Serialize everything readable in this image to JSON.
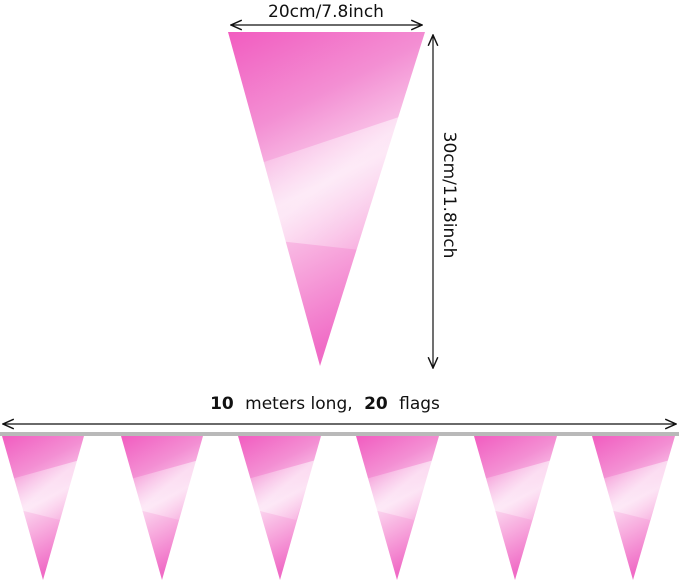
{
  "width_label": "20cm/7.8inch",
  "height_label": "30cm/11.8inch",
  "length_label": {
    "meters": "10",
    "meters_text": "meters long,",
    "flags": "20",
    "flags_text": "flags"
  }
}
